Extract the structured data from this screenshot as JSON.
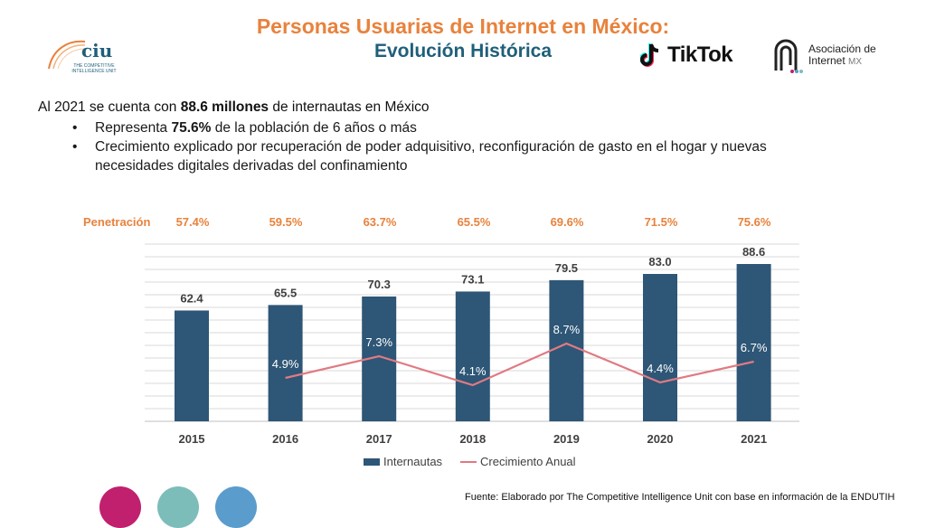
{
  "header": {
    "title_line1": "Personas Usuarias de Internet en México:",
    "title_line2": "Evolución Histórica"
  },
  "logos": {
    "ciu": {
      "text": "ciu",
      "subtitle": "THE COMPETITIVE INTELLIGENCE UNIT"
    },
    "tiktok": {
      "text": "TikTok"
    },
    "aimx": {
      "line1": "Asociación de",
      "line2": "Internet",
      "mx": "MX"
    }
  },
  "intro": {
    "prefix": "Al 2021 se cuenta con ",
    "highlight": "88.6 millones",
    "suffix": " de internautas en México"
  },
  "bullets": {
    "b1_prefix": "Representa ",
    "b1_highlight": "75.6%",
    "b1_suffix": " de la población de 6 años o más",
    "b2": "Crecimiento explicado por recuperación de poder adquisitivo, reconfiguración de gasto en el hogar y nuevas necesidades digitales derivadas del confinamiento"
  },
  "penetration": {
    "label": "Penetración",
    "values": [
      "57.4%",
      "59.5%",
      "63.7%",
      "65.5%",
      "69.6%",
      "71.5%",
      "75.6%"
    ]
  },
  "chart_data": {
    "type": "bar",
    "categories": [
      "2015",
      "2016",
      "2017",
      "2018",
      "2019",
      "2020",
      "2021"
    ],
    "series": [
      {
        "name": "Internautas",
        "type": "bar",
        "values": [
          62.4,
          65.5,
          70.3,
          73.1,
          79.5,
          83.0,
          88.6
        ],
        "labels": [
          "62.4",
          "65.5",
          "70.3",
          "73.1",
          "79.5",
          "83.0",
          "88.6"
        ]
      },
      {
        "name": "Crecimiento Anual",
        "type": "line",
        "values": [
          null,
          4.9,
          7.3,
          4.1,
          8.7,
          4.4,
          6.7
        ],
        "labels": [
          "",
          "4.9%",
          "7.3%",
          "4.1%",
          "8.7%",
          "4.4%",
          "6.7%"
        ]
      }
    ],
    "ylim": [
      0,
      100
    ],
    "y2lim": [
      0,
      16
    ],
    "grid": true,
    "legend": "bottom"
  },
  "legend": {
    "bar_label": "Internautas",
    "line_label": "Crecimiento Anual"
  },
  "source": "Fuente: Elaborado por The Competitive Intelligence Unit con base en información de la ENDUTIH",
  "colors": {
    "bar": "#2e5676",
    "line": "#e07a83",
    "accent": "#e8823c",
    "title2": "#1f5f7a",
    "circle1": "#c0206e",
    "circle2": "#7dbdb9",
    "circle3": "#5a9ccc"
  }
}
